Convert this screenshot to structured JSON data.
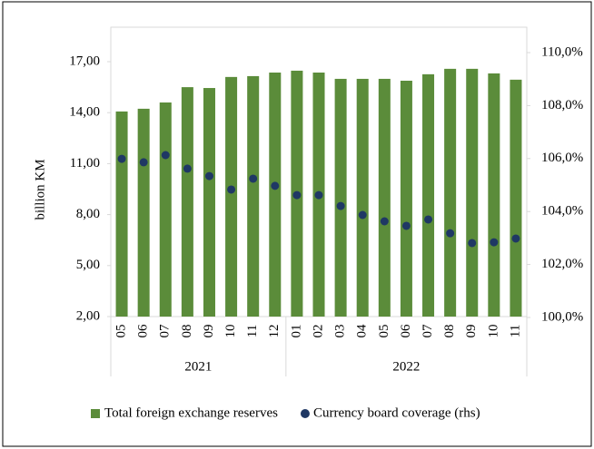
{
  "chart_data": {
    "type": "bar-dot",
    "y_label": "billion KM",
    "categories": [
      "05",
      "06",
      "07",
      "08",
      "09",
      "10",
      "11",
      "12",
      "01",
      "02",
      "03",
      "04",
      "05",
      "06",
      "07",
      "08",
      "09",
      "10",
      "11"
    ],
    "groups": [
      {
        "label": "2021",
        "count": 8
      },
      {
        "label": "2022",
        "count": 11
      }
    ],
    "series": [
      {
        "name": "Total foreign exchange reserves",
        "color": "#5b8c3a",
        "values": [
          14.07,
          14.23,
          14.6,
          15.5,
          15.45,
          16.1,
          16.15,
          16.36,
          16.47,
          16.36,
          15.99,
          15.99,
          15.99,
          15.88,
          16.26,
          16.58,
          16.58,
          16.31,
          15.94
        ]
      },
      {
        "name": "Currency board coverage (rhs)",
        "color": "#1f3864",
        "axis": "y2",
        "values": [
          105.99,
          105.86,
          106.13,
          105.62,
          105.34,
          104.83,
          105.24,
          104.97,
          104.62,
          104.62,
          104.21,
          103.87,
          103.63,
          103.46,
          103.7,
          103.18,
          102.81,
          102.84,
          102.98
        ]
      }
    ],
    "ylim": [
      2,
      17
    ],
    "yticks": [
      {
        "value": 2,
        "label": "2,00"
      },
      {
        "value": 5,
        "label": "5,00"
      },
      {
        "value": 8,
        "label": "8,00"
      },
      {
        "value": 11,
        "label": "11,00"
      },
      {
        "value": 14,
        "label": "14,00"
      },
      {
        "value": 17,
        "label": "17,00"
      }
    ],
    "y2lim": [
      100,
      110
    ],
    "y2ticks": [
      {
        "value": 100,
        "label": "100,0%"
      },
      {
        "value": 102,
        "label": "102,0%"
      },
      {
        "value": 104,
        "label": "104,0%"
      },
      {
        "value": 106,
        "label": "106,0%"
      },
      {
        "value": 108,
        "label": "108,0%"
      },
      {
        "value": 110,
        "label": "110,0%"
      }
    ],
    "grid": false
  }
}
